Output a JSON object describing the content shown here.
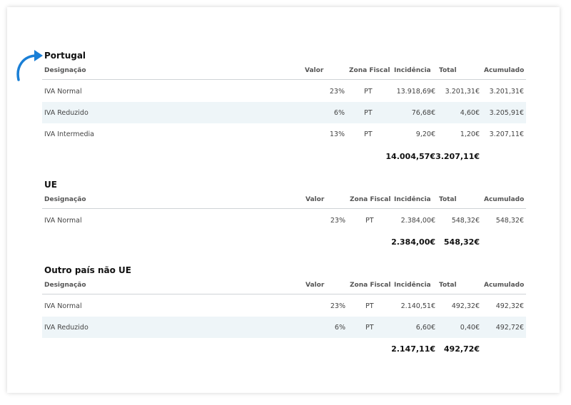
{
  "headers": {
    "designacao": "Designação",
    "valor": "Valor",
    "zona": "Zona Fiscal",
    "incidencia": "Incidência",
    "total": "Total",
    "acumulado": "Acumulado"
  },
  "accent_color": "#1a7fd6",
  "sections": [
    {
      "title": "Portugal",
      "rows": [
        {
          "designacao": "IVA Normal",
          "valor": "23%",
          "zona": "PT",
          "incidencia": "13.918,69€",
          "total": "3.201,31€",
          "acumulado": "3.201,31€"
        },
        {
          "designacao": "IVA Reduzido",
          "valor": "6%",
          "zona": "PT",
          "incidencia": "76,68€",
          "total": "4,60€",
          "acumulado": "3.205,91€"
        },
        {
          "designacao": "IVA Intermedia",
          "valor": "13%",
          "zona": "PT",
          "incidencia": "9,20€",
          "total": "1,20€",
          "acumulado": "3.207,11€"
        }
      ],
      "totals": {
        "incidencia": "14.004,57€",
        "total": "3.207,11€"
      }
    },
    {
      "title": "UE",
      "rows": [
        {
          "designacao": "IVA Normal",
          "valor": "23%",
          "zona": "PT",
          "incidencia": "2.384,00€",
          "total": "548,32€",
          "acumulado": "548,32€"
        }
      ],
      "totals": {
        "incidencia": "2.384,00€",
        "total": "548,32€"
      }
    },
    {
      "title": "Outro país não UE",
      "rows": [
        {
          "designacao": "IVA Normal",
          "valor": "23%",
          "zona": "PT",
          "incidencia": "2.140,51€",
          "total": "492,32€",
          "acumulado": "492,32€"
        },
        {
          "designacao": "IVA Reduzido",
          "valor": "6%",
          "zona": "PT",
          "incidencia": "6,60€",
          "total": "0,40€",
          "acumulado": "492,72€"
        }
      ],
      "totals": {
        "incidencia": "2.147,11€",
        "total": "492,72€"
      }
    }
  ]
}
